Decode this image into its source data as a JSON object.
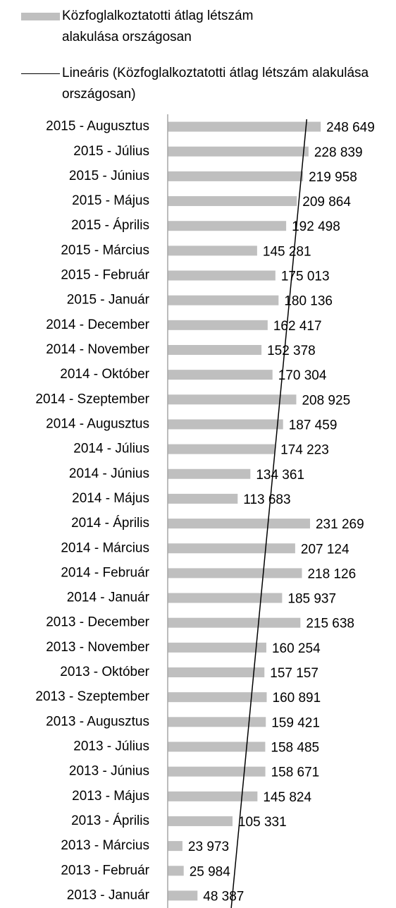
{
  "chart_data": {
    "type": "barh",
    "series": [
      {
        "name": "Közfoglalkoztatotti átlag létszám alakulása országosan",
        "color": "#bfbfbf",
        "values": [
          248649,
          228839,
          219958,
          209864,
          192498,
          145281,
          175013,
          180136,
          162417,
          152378,
          170304,
          208925,
          187459,
          174223,
          134361,
          113683,
          231269,
          207124,
          218126,
          185937,
          215638,
          160254,
          157157,
          160891,
          159421,
          158485,
          158671,
          145824,
          105331,
          23973,
          25984,
          48387
        ],
        "value_labels": [
          "248 649",
          "228 839",
          "219 958",
          "209 864",
          "192 498",
          "145 281",
          "175 013",
          "180 136",
          "162 417",
          "152 378",
          "170 304",
          "208 925",
          "187 459",
          "174 223",
          "134 361",
          "113 683",
          "231 269",
          "207 124",
          "218 126",
          "185 937",
          "215 638",
          "160 254",
          "157 157",
          "160 891",
          "159 421",
          "158 485",
          "158 671",
          "145 824",
          "105 331",
          "23 973",
          "25 984",
          "48 387"
        ]
      }
    ],
    "trendline": {
      "name": "Lineáris (Közfoglalkoztatotti átlag létszám alakulása országosan)",
      "color": "#000000",
      "kind": "linear"
    },
    "categories": [
      "2015 - Augusztus",
      "2015 - Július",
      "2015 - Június",
      "2015 - Május",
      "2015 - Április",
      "2015 - Március",
      "2015 - Február",
      "2015 - Január",
      "2014 - December",
      "2014 - November",
      "2014 - Október",
      "2014 - Szeptember",
      "2014 - Augusztus",
      "2014 - Július",
      "2014 - Június",
      "2014 - Május",
      "2014 - Április",
      "2014 - Március",
      "2014 - Február",
      "2014 - Január",
      "2013 - December",
      "2013 - November",
      "2013 - Október",
      "2013 - Szeptember",
      "2013 - Augusztus",
      "2013 - Július",
      "2013 - Június",
      "2013 - Május",
      "2013 - Április",
      "2013 - Március",
      "2013 - Február",
      "2013 - Január"
    ],
    "xlim": [
      0,
      300000
    ]
  }
}
